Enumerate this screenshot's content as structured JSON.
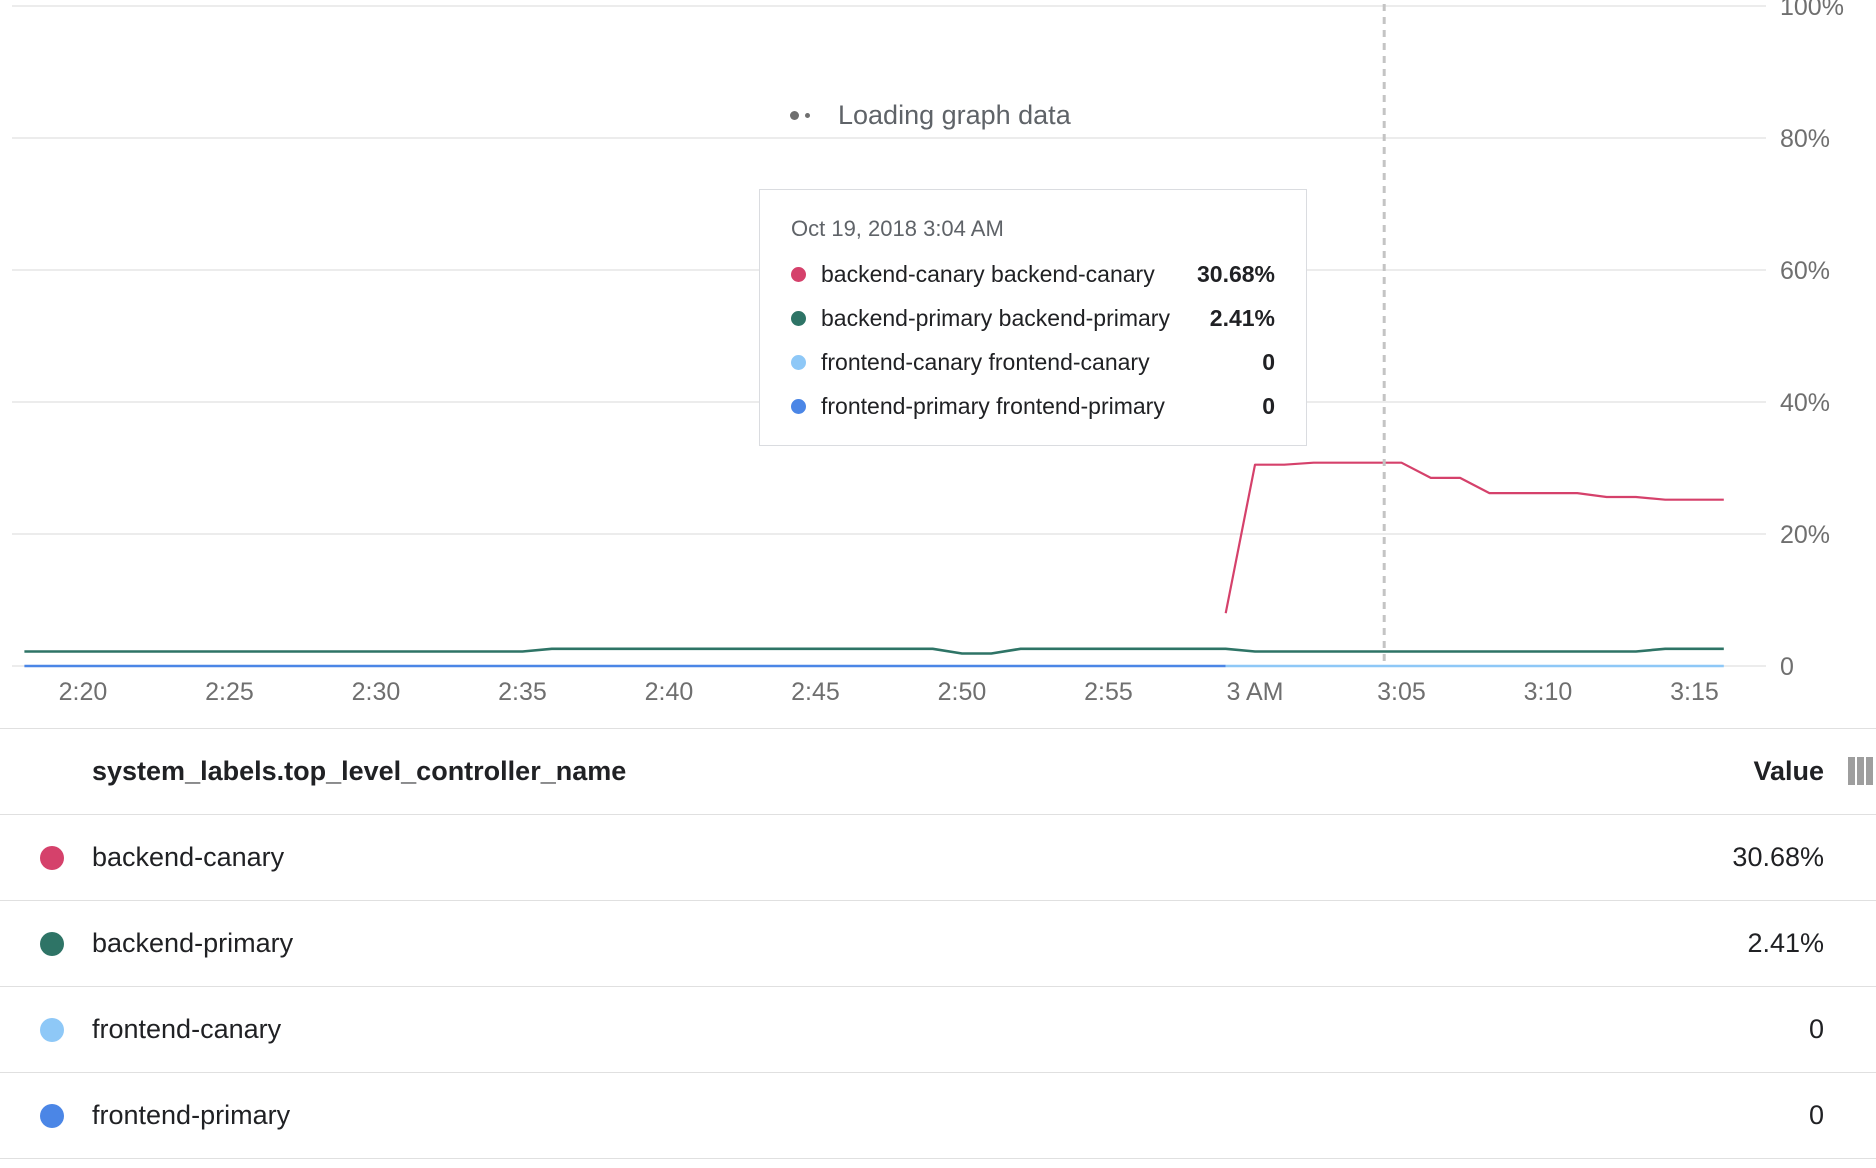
{
  "chart_data": {
    "type": "line",
    "x_ticks": [
      "2:20",
      "2:25",
      "2:30",
      "2:35",
      "2:40",
      "2:45",
      "2:50",
      "2:55",
      "3 AM",
      "3:05",
      "3:10",
      "3:15"
    ],
    "y_ticks": [
      "0",
      "20%",
      "40%",
      "60%",
      "80%",
      "100%"
    ],
    "ylim": [
      0,
      100
    ],
    "grid": true,
    "hover_time": "3:04",
    "series": [
      {
        "name": "backend-canary",
        "color": "#d5416b",
        "points": [
          [
            "2:59",
            8
          ],
          [
            "3:00",
            30.5
          ],
          [
            "3:01",
            30.5
          ],
          [
            "3:02",
            30.8
          ],
          [
            "3:03",
            30.8
          ],
          [
            "3:04",
            30.8
          ],
          [
            "3:05",
            30.8
          ],
          [
            "3:06",
            28.5
          ],
          [
            "3:07",
            28.5
          ],
          [
            "3:08",
            26.2
          ],
          [
            "3:09",
            26.2
          ],
          [
            "3:10",
            26.2
          ],
          [
            "3:11",
            26.2
          ],
          [
            "3:12",
            25.6
          ],
          [
            "3:13",
            25.6
          ],
          [
            "3:14",
            25.2
          ],
          [
            "3:15",
            25.2
          ],
          [
            "3:16",
            25.2
          ]
        ]
      },
      {
        "name": "backend-primary",
        "color": "#2e7466",
        "points": [
          [
            "2:18",
            2.2
          ],
          [
            "2:35",
            2.2
          ],
          [
            "2:36",
            2.6
          ],
          [
            "2:49",
            2.6
          ],
          [
            "2:50",
            1.9
          ],
          [
            "2:51",
            1.9
          ],
          [
            "2:52",
            2.6
          ],
          [
            "2:59",
            2.6
          ],
          [
            "3:00",
            2.2
          ],
          [
            "3:13",
            2.2
          ],
          [
            "3:14",
            2.6
          ],
          [
            "3:16",
            2.6
          ]
        ]
      },
      {
        "name": "frontend-canary",
        "color": "#8ec8f7",
        "points": [
          [
            "2:59",
            0
          ],
          [
            "3:16",
            0
          ]
        ]
      },
      {
        "name": "frontend-primary",
        "color": "#4b86e6",
        "points": [
          [
            "2:18",
            0
          ],
          [
            "2:59",
            0
          ]
        ]
      }
    ]
  },
  "loading_text": "Loading graph data",
  "tooltip": {
    "date": "Oct 19, 2018 3:04 AM",
    "rows": [
      {
        "label": "backend-canary backend-canary",
        "value": "30.68%",
        "color": "#d5416b"
      },
      {
        "label": "backend-primary backend-primary",
        "value": "2.41%",
        "color": "#2e7466"
      },
      {
        "label": "frontend-canary frontend-canary",
        "value": "0",
        "color": "#8ec8f7"
      },
      {
        "label": "frontend-primary frontend-primary",
        "value": "0",
        "color": "#4b86e6"
      }
    ]
  },
  "table": {
    "header_name": "system_labels.top_level_controller_name",
    "header_value": "Value",
    "rows": [
      {
        "name": "backend-canary",
        "value": "30.68%",
        "color": "#d5416b"
      },
      {
        "name": "backend-primary",
        "value": "2.41%",
        "color": "#2e7466"
      },
      {
        "name": "frontend-canary",
        "value": "0",
        "color": "#8ec8f7"
      },
      {
        "name": "frontend-primary",
        "value": "0",
        "color": "#4b86e6"
      }
    ]
  }
}
